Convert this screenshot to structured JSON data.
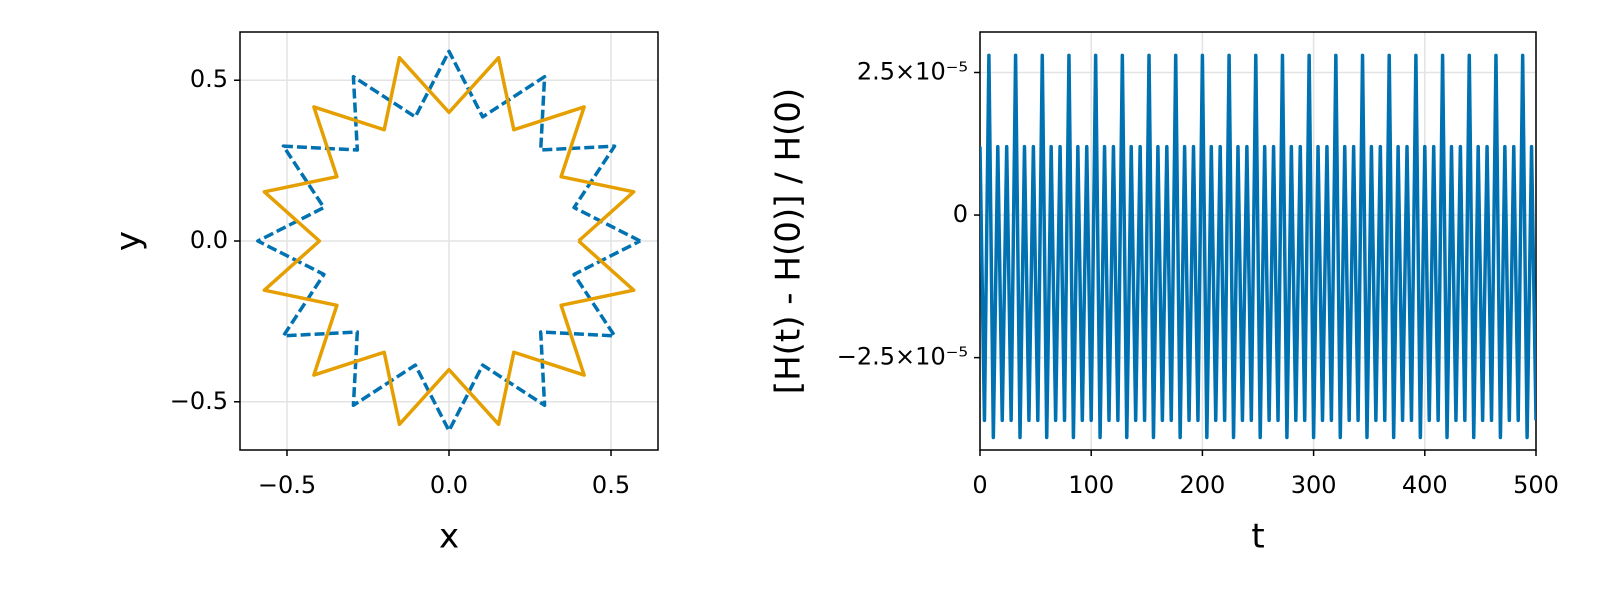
{
  "chart_data": [
    {
      "type": "line",
      "xlabel": "x",
      "ylabel": "y",
      "xlim": [
        -0.645,
        0.645
      ],
      "ylim": [
        -0.65,
        0.65
      ],
      "xticks": [
        {
          "value": -0.5,
          "label": "−0.5"
        },
        {
          "value": 0,
          "label": "0.0"
        },
        {
          "value": 0.5,
          "label": "0.5"
        }
      ],
      "yticks": [
        {
          "value": -0.5,
          "label": "−0.5"
        },
        {
          "value": 0,
          "label": "0.0"
        },
        {
          "value": 0.5,
          "label": "0.5"
        }
      ],
      "grid": true,
      "series": [
        {
          "color": "#0072b2",
          "dashed": true,
          "x": [
            0.59,
            0.386,
            0.511,
            0.283,
            0.295,
            0.104,
            0,
            -0.104,
            -0.295,
            -0.283,
            -0.511,
            -0.386,
            -0.59,
            -0.386,
            -0.511,
            -0.283,
            -0.295,
            -0.104,
            0,
            0.104,
            0.295,
            0.283,
            0.511,
            0.386,
            0.59
          ],
          "values": [
            0,
            0.104,
            0.295,
            0.283,
            0.511,
            0.386,
            0.59,
            0.386,
            0.511,
            0.283,
            0.295,
            0.104,
            0,
            -0.104,
            -0.295,
            -0.283,
            -0.511,
            -0.386,
            -0.59,
            -0.386,
            -0.511,
            -0.283,
            -0.295,
            -0.104,
            0
          ]
        },
        {
          "color": "#e69f00",
          "dashed": false,
          "x": [
            0.4,
            0.57,
            0.346,
            0.417,
            0.2,
            0.153,
            0,
            -0.153,
            -0.2,
            -0.417,
            -0.346,
            -0.57,
            -0.4,
            -0.57,
            -0.346,
            -0.417,
            -0.2,
            -0.153,
            0,
            0.153,
            0.2,
            0.417,
            0.346,
            0.57,
            0.4
          ],
          "values": [
            0,
            0.153,
            0.2,
            0.417,
            0.346,
            0.57,
            0.4,
            0.57,
            0.346,
            0.417,
            0.2,
            0.153,
            0,
            -0.153,
            -0.2,
            -0.417,
            -0.346,
            -0.57,
            -0.4,
            -0.57,
            -0.346,
            -0.417,
            -0.2,
            -0.153,
            0
          ]
        }
      ]
    },
    {
      "type": "line",
      "xlabel": "t",
      "ylabel": "[H(t) - H(0)] / H(0)",
      "xlim": [
        0,
        500
      ],
      "ylim": [
        -4.12e-05,
        3.21e-05
      ],
      "xticks": [
        0,
        100,
        200,
        300,
        400,
        500
      ],
      "yticks": [
        {
          "value": 2.5e-05,
          "label": "2.5×10⁻⁵"
        },
        0,
        {
          "value": -2.5e-05,
          "label": "−2.5×10⁻⁵"
        }
      ],
      "grid": true,
      "series": [
        {
          "color": "#0072b2",
          "dashed": false,
          "x": [
            0,
            4,
            8,
            12,
            16,
            20,
            24,
            28,
            32,
            36,
            40,
            44,
            48,
            52,
            56,
            60,
            64,
            68,
            72,
            76,
            80,
            84,
            88,
            92,
            96,
            100,
            104,
            108,
            112,
            116,
            120,
            124,
            128,
            132,
            136,
            140,
            144,
            148,
            152,
            156,
            160,
            164,
            168,
            172,
            176,
            180,
            184,
            188,
            192,
            196,
            200,
            204,
            208,
            212,
            216,
            220,
            224,
            228,
            232,
            236,
            240,
            244,
            248,
            252,
            256,
            260,
            264,
            268,
            272,
            276,
            280,
            284,
            288,
            292,
            296,
            300,
            304,
            308,
            312,
            316,
            320,
            324,
            328,
            332,
            336,
            340,
            344,
            348,
            352,
            356,
            360,
            364,
            368,
            372,
            376,
            380,
            384,
            388,
            392,
            396,
            400,
            404,
            408,
            412,
            416,
            420,
            424,
            428,
            432,
            436,
            440,
            444,
            448,
            452,
            456,
            460,
            464,
            468,
            472,
            476,
            480,
            484,
            488,
            492,
            496,
            500
          ],
          "values": [
            1.2e-05,
            -3.6e-05,
            2.8e-05,
            -3.9e-05,
            1.2e-05,
            -3.6e-05,
            1.2e-05,
            -3.6e-05,
            2.8e-05,
            -3.9e-05,
            1.2e-05,
            -3.6e-05,
            1.2e-05,
            -3.6e-05,
            2.8e-05,
            -3.9e-05,
            1.2e-05,
            -3.6e-05,
            1.2e-05,
            -3.6e-05,
            2.8e-05,
            -3.9e-05,
            1.2e-05,
            -3.6e-05,
            1.2e-05,
            -3.6e-05,
            2.8e-05,
            -3.9e-05,
            1.2e-05,
            -3.6e-05,
            1.2e-05,
            -3.6e-05,
            2.8e-05,
            -3.9e-05,
            1.2e-05,
            -3.6e-05,
            1.2e-05,
            -3.6e-05,
            2.8e-05,
            -3.9e-05,
            1.2e-05,
            -3.6e-05,
            1.2e-05,
            -3.6e-05,
            2.8e-05,
            -3.9e-05,
            1.2e-05,
            -3.6e-05,
            1.2e-05,
            -3.6e-05,
            2.8e-05,
            -3.9e-05,
            1.2e-05,
            -3.6e-05,
            1.2e-05,
            -3.6e-05,
            2.8e-05,
            -3.9e-05,
            1.2e-05,
            -3.6e-05,
            1.2e-05,
            -3.6e-05,
            2.8e-05,
            -3.9e-05,
            1.2e-05,
            -3.6e-05,
            1.2e-05,
            -3.6e-05,
            2.8e-05,
            -3.9e-05,
            1.2e-05,
            -3.6e-05,
            1.2e-05,
            -3.6e-05,
            2.8e-05,
            -3.9e-05,
            1.2e-05,
            -3.6e-05,
            1.2e-05,
            -3.6e-05,
            2.8e-05,
            -3.9e-05,
            1.2e-05,
            -3.6e-05,
            1.2e-05,
            -3.6e-05,
            2.8e-05,
            -3.9e-05,
            1.2e-05,
            -3.6e-05,
            1.2e-05,
            -3.6e-05,
            2.8e-05,
            -3.9e-05,
            1.2e-05,
            -3.6e-05,
            1.2e-05,
            -3.6e-05,
            2.8e-05,
            -3.9e-05,
            1.2e-05,
            -3.6e-05,
            1.2e-05,
            -3.6e-05,
            2.8e-05,
            -3.9e-05,
            1.2e-05,
            -3.6e-05,
            1.2e-05,
            -3.6e-05,
            2.8e-05,
            -3.9e-05,
            1.2e-05,
            -3.6e-05,
            1.2e-05,
            -3.6e-05,
            2.8e-05,
            -3.9e-05,
            1.2e-05,
            -3.6e-05,
            1.2e-05,
            -3.6e-05,
            2.8e-05,
            -3.9e-05,
            1.2e-05,
            -3.6e-05
          ]
        }
      ]
    }
  ]
}
